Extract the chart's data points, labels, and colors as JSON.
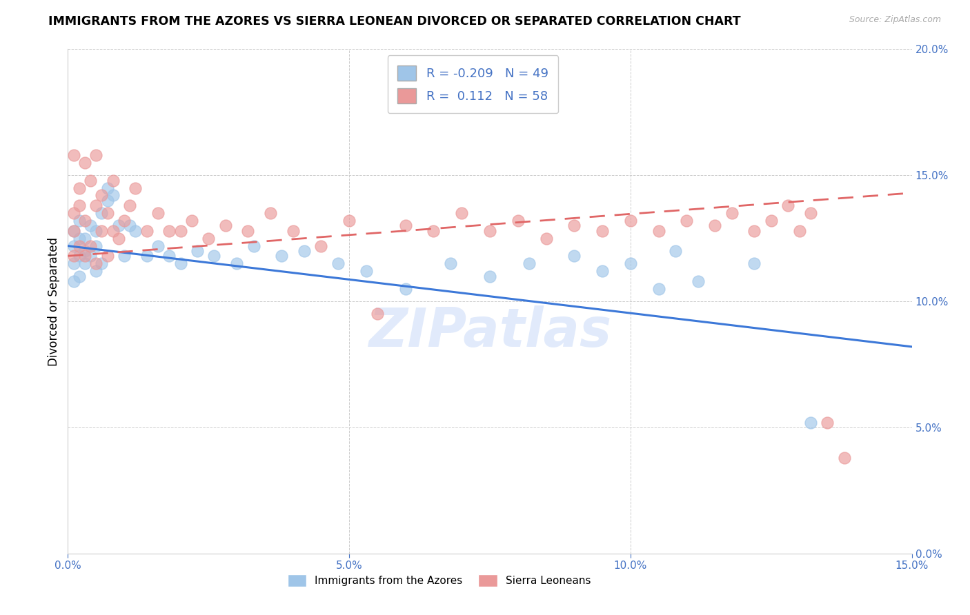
{
  "title": "IMMIGRANTS FROM THE AZORES VS SIERRA LEONEAN DIVORCED OR SEPARATED CORRELATION CHART",
  "source": "Source: ZipAtlas.com",
  "ylabel": "Divorced or Separated",
  "xlim": [
    0.0,
    0.15
  ],
  "ylim": [
    0.0,
    0.2
  ],
  "xticks": [
    0.0,
    0.05,
    0.1,
    0.15
  ],
  "yticks": [
    0.0,
    0.05,
    0.1,
    0.15,
    0.2
  ],
  "xtick_labels": [
    "0.0%",
    "5.0%",
    "10.0%",
    "15.0%"
  ],
  "ytick_labels": [
    "0.0%",
    "5.0%",
    "10.0%",
    "15.0%",
    "20.0%"
  ],
  "blue_color": "#9fc5e8",
  "pink_color": "#ea9999",
  "blue_line_color": "#3c78d8",
  "pink_line_color": "#e06666",
  "axis_color": "#4472c4",
  "watermark": "ZIPatlas",
  "legend_R1": "-0.209",
  "legend_N1": "49",
  "legend_R2": "0.112",
  "legend_N2": "58",
  "label1": "Immigrants from the Azores",
  "label2": "Sierra Leoneans",
  "blue_line_x0": 0.0,
  "blue_line_y0": 0.122,
  "blue_line_x1": 0.15,
  "blue_line_y1": 0.082,
  "pink_line_x0": 0.0,
  "pink_line_y0": 0.118,
  "pink_line_x1": 0.15,
  "pink_line_y1": 0.143,
  "blue_scatter_x": [
    0.001,
    0.001,
    0.001,
    0.001,
    0.002,
    0.002,
    0.002,
    0.002,
    0.003,
    0.003,
    0.003,
    0.004,
    0.004,
    0.005,
    0.005,
    0.005,
    0.006,
    0.006,
    0.007,
    0.007,
    0.008,
    0.009,
    0.01,
    0.011,
    0.012,
    0.014,
    0.016,
    0.018,
    0.02,
    0.023,
    0.026,
    0.03,
    0.033,
    0.038,
    0.042,
    0.048,
    0.053,
    0.06,
    0.068,
    0.075,
    0.082,
    0.09,
    0.095,
    0.1,
    0.105,
    0.108,
    0.112,
    0.122,
    0.132
  ],
  "blue_scatter_y": [
    0.122,
    0.128,
    0.115,
    0.108,
    0.132,
    0.118,
    0.125,
    0.11,
    0.12,
    0.115,
    0.125,
    0.118,
    0.13,
    0.122,
    0.112,
    0.128,
    0.115,
    0.135,
    0.145,
    0.14,
    0.142,
    0.13,
    0.118,
    0.13,
    0.128,
    0.118,
    0.122,
    0.118,
    0.115,
    0.12,
    0.118,
    0.115,
    0.122,
    0.118,
    0.12,
    0.115,
    0.112,
    0.105,
    0.115,
    0.11,
    0.115,
    0.118,
    0.112,
    0.115,
    0.105,
    0.12,
    0.108,
    0.115,
    0.052
  ],
  "pink_scatter_x": [
    0.001,
    0.001,
    0.001,
    0.001,
    0.002,
    0.002,
    0.002,
    0.003,
    0.003,
    0.003,
    0.004,
    0.004,
    0.005,
    0.005,
    0.005,
    0.006,
    0.006,
    0.007,
    0.007,
    0.008,
    0.008,
    0.009,
    0.01,
    0.011,
    0.012,
    0.014,
    0.016,
    0.018,
    0.02,
    0.022,
    0.025,
    0.028,
    0.032,
    0.036,
    0.04,
    0.045,
    0.05,
    0.055,
    0.06,
    0.065,
    0.07,
    0.075,
    0.08,
    0.085,
    0.09,
    0.095,
    0.1,
    0.105,
    0.11,
    0.115,
    0.118,
    0.122,
    0.125,
    0.128,
    0.13,
    0.132,
    0.135,
    0.138
  ],
  "pink_scatter_y": [
    0.135,
    0.128,
    0.158,
    0.118,
    0.145,
    0.122,
    0.138,
    0.155,
    0.118,
    0.132,
    0.148,
    0.122,
    0.138,
    0.115,
    0.158,
    0.128,
    0.142,
    0.118,
    0.135,
    0.128,
    0.148,
    0.125,
    0.132,
    0.138,
    0.145,
    0.128,
    0.135,
    0.128,
    0.128,
    0.132,
    0.125,
    0.13,
    0.128,
    0.135,
    0.128,
    0.122,
    0.132,
    0.095,
    0.13,
    0.128,
    0.135,
    0.128,
    0.132,
    0.125,
    0.13,
    0.128,
    0.132,
    0.128,
    0.132,
    0.13,
    0.135,
    0.128,
    0.132,
    0.138,
    0.128,
    0.135,
    0.052,
    0.038
  ]
}
